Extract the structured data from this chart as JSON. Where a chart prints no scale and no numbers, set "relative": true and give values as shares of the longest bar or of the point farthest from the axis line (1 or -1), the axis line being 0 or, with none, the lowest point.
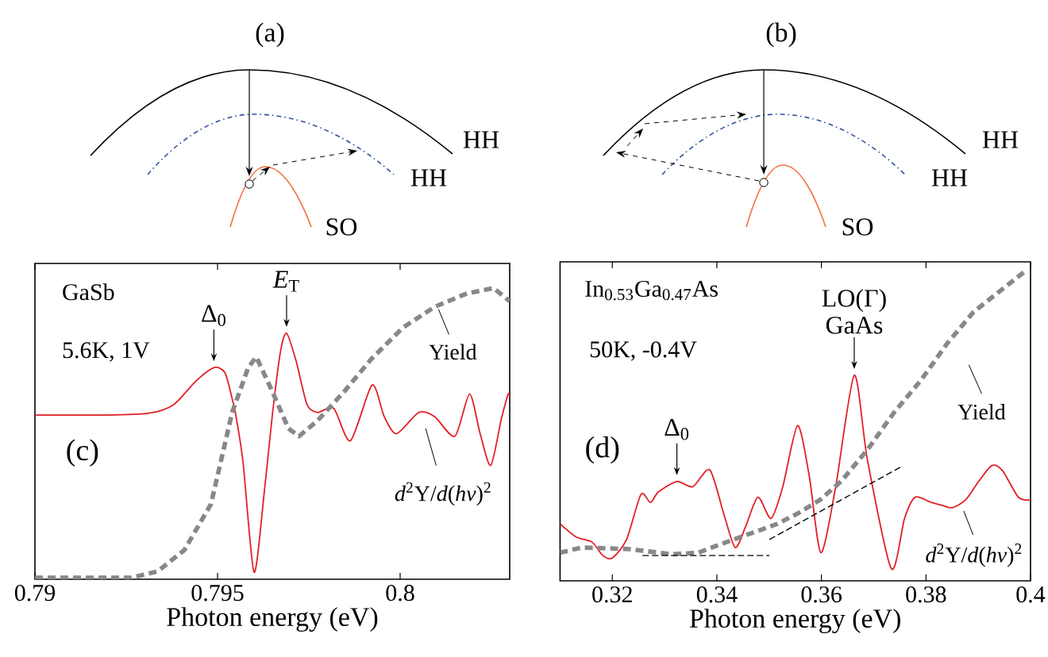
{
  "chart_data": [
    {
      "type": "other",
      "title": "(a)",
      "annotations": [
        "HH",
        "HH",
        "SO"
      ]
    },
    {
      "type": "other",
      "title": "(b)",
      "annotations": [
        "HH",
        "HH",
        "SO"
      ]
    },
    {
      "type": "line",
      "relative": true,
      "tick_labels": "x",
      "xlabel": "Photon energy (eV)",
      "xlim": [
        0.79,
        0.803
      ],
      "xticks": [
        0.79,
        0.795,
        0.8
      ],
      "annotations": [
        "GaSb",
        "5.6K, 1V",
        "(c)",
        {
          "text": "Δ$_{0}$",
          "x": 0.7949,
          "y": 0.727
        },
        {
          "text": "*E*$_{T}$",
          "x": 0.79689,
          "y": 0.845
        }
      ],
      "series": [
        {
          "name": "*d*$^{2}$Y/*d*(*hν*)$^{2}$",
          "color": "#e41e26",
          "line_style": "solid",
          "x": [
            0.79,
            0.7919,
            0.7931,
            0.7938,
            0.7944,
            0.7949,
            0.7952,
            0.7954,
            0.7955,
            0.7957,
            0.796,
            0.79628,
            0.7965,
            0.79672,
            0.79689,
            0.79715,
            0.79745,
            0.79774,
            0.79818,
            0.79864,
            0.79923,
            0.79956,
            0.7999,
            0.80051,
            0.80095,
            0.8015,
            0.8019,
            0.80219,
            0.80248,
            0.80277,
            0.80296,
            0.803
          ],
          "values": [
            0.564,
            0.564,
            0.57,
            0.6,
            0.68,
            0.727,
            0.71,
            0.62,
            0.564,
            0.4,
            0.024,
            0.3,
            0.564,
            0.78,
            0.845,
            0.75,
            0.6,
            0.573,
            0.587,
            0.476,
            0.667,
            0.56,
            0.5,
            0.573,
            0.558,
            0.491,
            0.636,
            0.5,
            0.391,
            0.55,
            0.636,
            0.627
          ]
        },
        {
          "name": "Yield",
          "color": "#888888",
          "line_style": "dashed",
          "x": [
            0.79,
            0.79263,
            0.79336,
            0.79409,
            0.79482,
            0.7954,
            0.79584,
            0.79606,
            0.7965,
            0.79694,
            0.79723,
            0.79774,
            0.79847,
            0.7992,
            0.80007,
            0.80095,
            0.80183,
            0.80256,
            0.803
          ],
          "values": [
            0.005,
            0.005,
            0.027,
            0.1,
            0.258,
            0.573,
            0.727,
            0.764,
            0.645,
            0.518,
            0.491,
            0.545,
            0.645,
            0.755,
            0.864,
            0.936,
            0.982,
            1.0,
            0.955
          ]
        }
      ]
    },
    {
      "type": "line",
      "relative": true,
      "tick_labels": "x",
      "xlabel": "Photon energy (eV)",
      "xlim": [
        0.31,
        0.4
      ],
      "xticks": [
        0.32,
        0.34,
        0.36,
        0.38,
        0.4
      ],
      "annotations": [
        "In$_{0.53}$Ga$_{0.47}$As",
        "50K, -0.4V",
        "(d)",
        {
          "text": "Δ$_{0}$",
          "x": 0.33235,
          "y": 0.322
        },
        {
          "text": "LO(Γ) GaAs",
          "x": 0.36628,
          "y": 0.666
        }
      ],
      "series": [
        {
          "name": "*d*$^{2}$Y/*d*(*hv*)$^{2}$",
          "color": "#e41e26",
          "line_style": "solid",
          "x": [
            0.31,
            0.31311,
            0.31615,
            0.31818,
            0.32,
            0.32273,
            0.32547,
            0.32729,
            0.32881,
            0.33235,
            0.33539,
            0.33863,
            0.34127,
            0.34349,
            0.34552,
            0.34785,
            0.35038,
            0.35261,
            0.35544,
            0.35767,
            0.3599,
            0.36273,
            0.36628,
            0.36881,
            0.37337,
            0.3759,
            0.37793,
            0.38097,
            0.383,
            0.38502,
            0.38755,
            0.39008,
            0.39261,
            0.39464,
            0.39768,
            0.4
          ],
          "values": [
            0.185,
            0.142,
            0.125,
            0.082,
            0.074,
            0.134,
            0.28,
            0.254,
            0.288,
            0.322,
            0.305,
            0.36,
            0.22,
            0.108,
            0.177,
            0.271,
            0.202,
            0.305,
            0.503,
            0.34,
            0.091,
            0.305,
            0.666,
            0.391,
            0.039,
            0.202,
            0.271,
            0.254,
            0.245,
            0.237,
            0.262,
            0.322,
            0.374,
            0.357,
            0.271,
            0.262
          ]
        },
        {
          "name": "Yield",
          "color": "#888888",
          "line_style": "dashed",
          "x": [
            0.31,
            0.31413,
            0.32324,
            0.33134,
            0.33641,
            0.34046,
            0.34451,
            0.34755,
            0.3516,
            0.35565,
            0.3597,
            0.36375,
            0.36881,
            0.37387,
            0.37894,
            0.384,
            0.38907,
            0.39869
          ],
          "values": [
            0.091,
            0.108,
            0.103,
            0.086,
            0.091,
            0.117,
            0.142,
            0.16,
            0.185,
            0.22,
            0.262,
            0.322,
            0.425,
            0.545,
            0.648,
            0.768,
            0.871,
            1.0
          ]
        },
        {
          "color": "#000000",
          "line_style": "dashed",
          "x": [
            0.32577,
            0.35008
          ],
          "values": [
            0.082,
            0.082
          ]
        },
        {
          "color": "#000000",
          "line_style": "dashed",
          "x": [
            0.35008,
            0.37539
          ],
          "values": [
            0.134,
            0.371
          ]
        }
      ]
    }
  ]
}
